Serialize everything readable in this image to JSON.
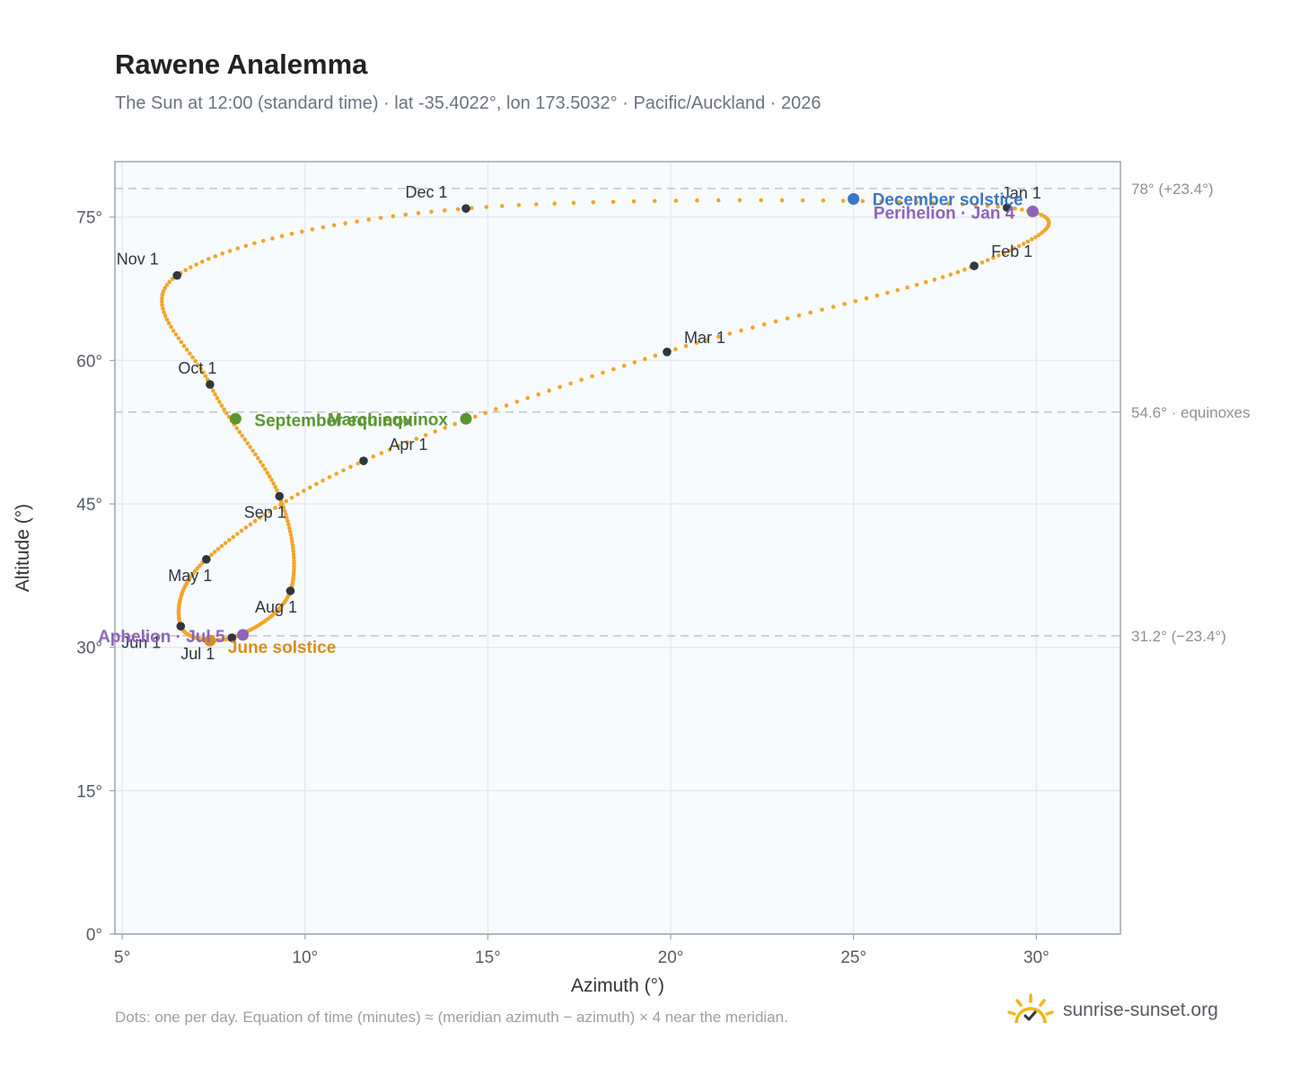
{
  "title": "Rawene Analemma",
  "subtitle": "The Sun at 12:00 (standard time) · lat -35.4022°, lon 173.5032° · Pacific/Auckland · 2026",
  "footnote": "Dots: one per day. Equation of time (minutes) ≈ (meridian azimuth − azimuth) × 4 near the meridian.",
  "brand": {
    "name": "sunrise-sunset.org",
    "icon": "sun-logo-icon",
    "color": "#f2b618"
  },
  "colors": {
    "curve": "#f2a52a",
    "month_marker": "#2f3640",
    "solstice_december": "#3b78c2",
    "solstice_june": "#d4901b",
    "equinox": "#5a9632",
    "apsis": "#8e64b8",
    "plot_bg": "#f8fbfd",
    "grid": "#e6eaee",
    "reference_line": "#c4c9cf",
    "axis": "#9aa3ad"
  },
  "chart_data": {
    "type": "scatter",
    "xlabel": "Azimuth (°)",
    "ylabel": "Altitude (°)",
    "xlim": [
      4.8,
      32.3
    ],
    "ylim": [
      0,
      80.8
    ],
    "x_ticks": [
      5,
      10,
      15,
      20,
      25,
      30
    ],
    "x_tick_labels": [
      "5°",
      "10°",
      "15°",
      "20°",
      "25°",
      "30°"
    ],
    "y_ticks": [
      0,
      15,
      30,
      45,
      60,
      75
    ],
    "y_tick_labels": [
      "0°",
      "15°",
      "30°",
      "45°",
      "60°",
      "75°"
    ],
    "grid": true,
    "dots_per_year": 365,
    "reference_lines": [
      {
        "y": 78.0,
        "label": "78° (+23.4°)"
      },
      {
        "y": 54.6,
        "label": "54.6° · equinoxes"
      },
      {
        "y": 31.2,
        "label": "31.2° (−23.4°)"
      }
    ],
    "month_markers": [
      {
        "label": "Jan 1",
        "az": 29.2,
        "alt": 76.0
      },
      {
        "label": "Feb 1",
        "az": 28.3,
        "alt": 69.9
      },
      {
        "label": "Mar 1",
        "az": 19.9,
        "alt": 60.9
      },
      {
        "label": "Apr 1",
        "az": 11.6,
        "alt": 49.5
      },
      {
        "label": "May 1",
        "az": 7.3,
        "alt": 39.2
      },
      {
        "label": "Jun 1",
        "az": 6.6,
        "alt": 32.2
      },
      {
        "label": "Jul 1",
        "az": 8.0,
        "alt": 31.0
      },
      {
        "label": "Aug 1",
        "az": 9.6,
        "alt": 35.9
      },
      {
        "label": "Sep 1",
        "az": 9.3,
        "alt": 45.8
      },
      {
        "label": "Oct 1",
        "az": 7.4,
        "alt": 57.5
      },
      {
        "label": "Nov 1",
        "az": 6.5,
        "alt": 68.9
      },
      {
        "label": "Dec 1",
        "az": 14.4,
        "alt": 75.9
      }
    ],
    "events": [
      {
        "label": "December solstice",
        "az": 25.0,
        "alt": 76.9,
        "color": "#3b78c2"
      },
      {
        "label": "Perihelion · Jan 4",
        "az": 29.9,
        "alt": 75.6,
        "color": "#8e64b8"
      },
      {
        "label": "March equinox",
        "az": 14.4,
        "alt": 53.9,
        "color": "#5a9632"
      },
      {
        "label": "September equinox",
        "az": 8.1,
        "alt": 53.9,
        "color": "#5a9632"
      },
      {
        "label": "June solstice",
        "az": 7.4,
        "alt": 30.7,
        "color": "#d4901b"
      },
      {
        "label": "Aphelion · Jul 5",
        "az": 8.3,
        "alt": 31.3,
        "color": "#8e64b8"
      }
    ]
  }
}
